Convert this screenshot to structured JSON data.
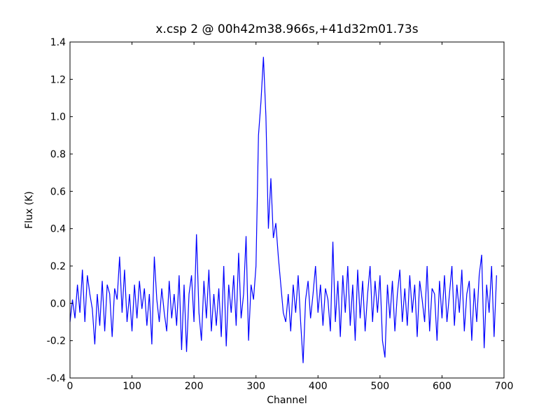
{
  "chart_data": {
    "type": "line",
    "title": "x.csp 2 @ 00h42m38.966s,+41d32m01.73s",
    "xlabel": "Channel",
    "ylabel": "Flux (K)",
    "xlim": [
      0,
      700
    ],
    "ylim": [
      -0.4,
      1.4
    ],
    "xticks": [
      0,
      100,
      200,
      300,
      400,
      500,
      600,
      700
    ],
    "yticks": [
      -0.4,
      -0.2,
      {
        "value": 0,
        "label": "0.0"
      },
      0.2,
      0.4,
      0.6,
      0.8,
      {
        "value": 1,
        "label": "1.0"
      },
      1.2,
      1.4
    ],
    "series": [
      {
        "color": "#0000ff",
        "x": [
          0,
          4,
          8,
          12,
          16,
          20,
          24,
          28,
          32,
          36,
          40,
          44,
          48,
          52,
          56,
          60,
          64,
          68,
          72,
          76,
          80,
          84,
          88,
          92,
          96,
          100,
          104,
          108,
          112,
          116,
          120,
          124,
          128,
          132,
          136,
          140,
          144,
          148,
          152,
          156,
          160,
          164,
          168,
          172,
          176,
          180,
          184,
          188,
          192,
          196,
          200,
          204,
          208,
          212,
          216,
          220,
          224,
          228,
          232,
          236,
          240,
          244,
          248,
          252,
          256,
          260,
          264,
          268,
          272,
          276,
          280,
          284,
          288,
          292,
          296,
          300,
          304,
          308,
          312,
          316,
          320,
          324,
          328,
          332,
          336,
          340,
          344,
          348,
          352,
          356,
          360,
          364,
          368,
          372,
          376,
          380,
          384,
          388,
          392,
          396,
          400,
          404,
          408,
          412,
          416,
          420,
          424,
          428,
          432,
          436,
          440,
          444,
          448,
          452,
          456,
          460,
          464,
          468,
          472,
          476,
          480,
          484,
          488,
          492,
          496,
          500,
          504,
          508,
          512,
          516,
          520,
          524,
          528,
          532,
          536,
          540,
          544,
          548,
          552,
          556,
          560,
          564,
          568,
          572,
          576,
          580,
          584,
          588,
          592,
          596,
          600,
          604,
          608,
          612,
          616,
          620,
          624,
          628,
          632,
          636,
          640,
          644,
          648,
          652,
          656,
          660,
          664,
          668,
          672,
          676,
          680,
          684,
          688
        ],
        "values": [
          -0.1,
          0.02,
          -0.08,
          0.1,
          -0.05,
          0.18,
          -0.1,
          0.15,
          0.05,
          -0.03,
          -0.22,
          0.05,
          -0.12,
          0.12,
          -0.15,
          0.1,
          0.05,
          -0.18,
          0.08,
          0.02,
          0.25,
          -0.05,
          0.18,
          -0.1,
          0.05,
          -0.15,
          0.1,
          -0.08,
          0.12,
          -0.03,
          0.08,
          -0.12,
          0.05,
          -0.22,
          0.25,
          0.02,
          -0.1,
          0.08,
          -0.05,
          -0.15,
          0.12,
          -0.08,
          0.05,
          -0.12,
          0.15,
          -0.25,
          0.1,
          -0.26,
          0.05,
          0.15,
          -0.1,
          0.37,
          -0.05,
          -0.2,
          0.12,
          -0.08,
          0.18,
          -0.15,
          0.05,
          -0.12,
          0.08,
          -0.18,
          0.2,
          -0.23,
          0.1,
          -0.05,
          0.15,
          -0.12,
          0.27,
          -0.08,
          0.05,
          0.36,
          -0.2,
          0.1,
          0.02,
          0.2,
          0.9,
          1.08,
          1.32,
          1.0,
          0.4,
          0.67,
          0.35,
          0.43,
          0.25,
          0.1,
          -0.05,
          -0.1,
          0.05,
          -0.15,
          0.1,
          -0.05,
          0.15,
          -0.1,
          -0.32,
          0.02,
          0.12,
          -0.08,
          0.05,
          0.2,
          -0.05,
          0.1,
          -0.12,
          0.08,
          0.02,
          -0.15,
          0.33,
          -0.1,
          0.12,
          -0.18,
          0.15,
          -0.05,
          0.2,
          -0.12,
          0.1,
          -0.2,
          0.18,
          -0.08,
          0.12,
          -0.15,
          0.05,
          0.2,
          -0.1,
          0.12,
          -0.05,
          0.15,
          -0.2,
          -0.29,
          0.1,
          -0.08,
          0.12,
          -0.15,
          0.05,
          0.18,
          -0.1,
          0.08,
          -0.12,
          0.15,
          -0.05,
          0.1,
          -0.18,
          0.12,
          0.02,
          -0.1,
          0.2,
          -0.15,
          0.08,
          0.05,
          -0.2,
          0.12,
          -0.08,
          0.15,
          -0.1,
          0.05,
          0.2,
          -0.12,
          0.1,
          -0.05,
          0.18,
          -0.15,
          0.05,
          0.12,
          -0.2,
          0.08,
          -0.1,
          0.15,
          0.26,
          -0.24,
          0.1,
          -0.05,
          0.2,
          -0.18,
          0.15
        ]
      }
    ]
  }
}
